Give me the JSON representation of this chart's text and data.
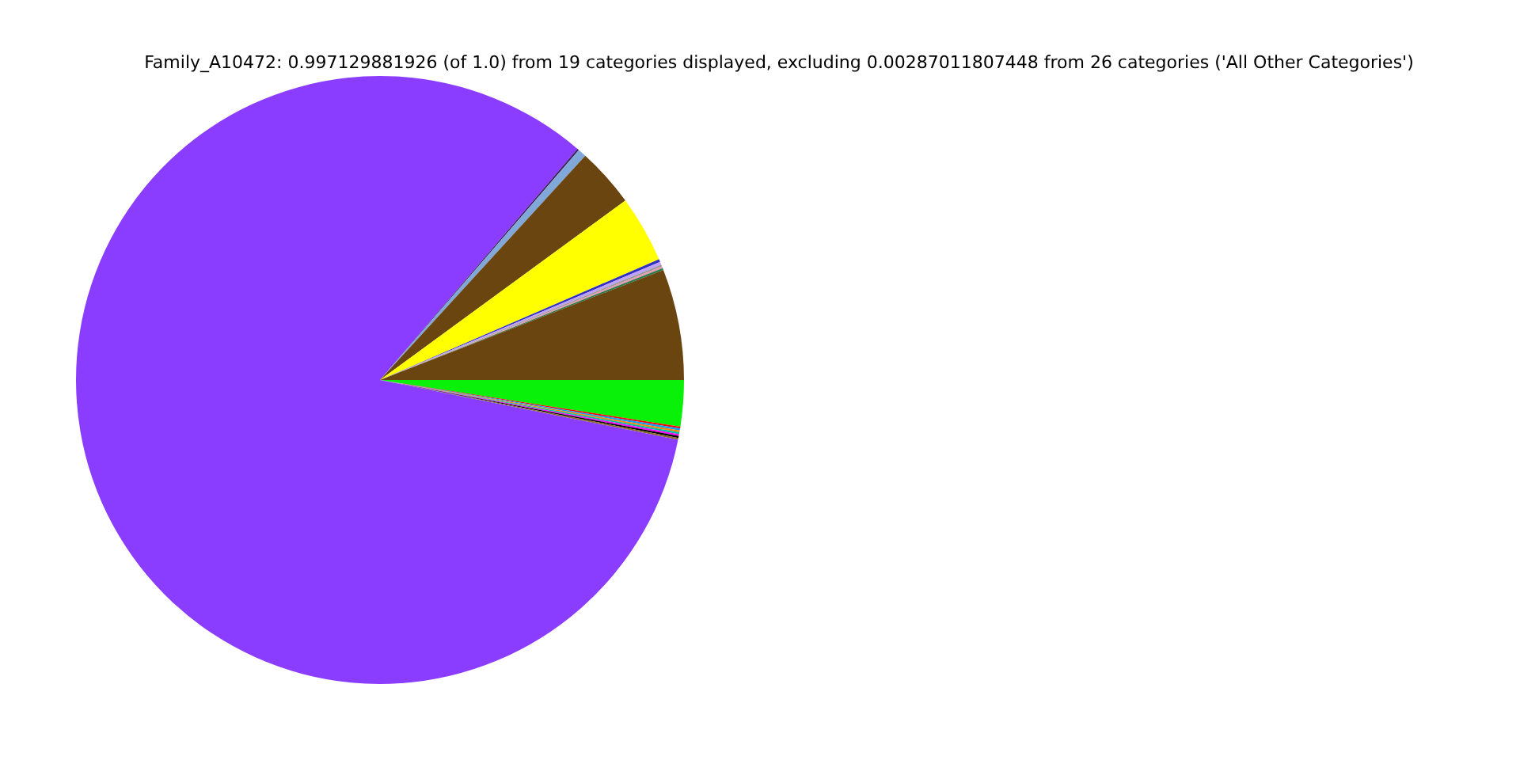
{
  "chart_data": {
    "type": "pie",
    "title": "Family_A10472: 0.997129881926 (of 1.0) from 19 categories displayed, excluding 0.00287011807448 from 26 categories ('All Other Categories')",
    "categories": [
      null,
      null,
      null,
      null,
      null,
      null,
      null,
      null,
      null,
      null,
      null,
      null,
      null,
      null,
      null,
      null,
      null,
      null,
      null
    ],
    "values": [
      2.45,
      0.1,
      0.1,
      0.1,
      0.1,
      0.1,
      0.1,
      0.1,
      83.1,
      0.1,
      0.45,
      3.15,
      3.55,
      0.15,
      0.15,
      0.1,
      0.1,
      0.1,
      5.9
    ],
    "colors": [
      "#09f009",
      "#ff0000",
      "#00a0ff",
      "#ff8000",
      "#00c0a0",
      "#ff00ff",
      "#000000",
      "#8a6a2a",
      "#8b3dff",
      "#402060",
      "#80a8d8",
      "#6b4510",
      "#ffff00",
      "#3030c0",
      "#c0a0ff",
      "#999999",
      "#e899b0",
      "#2a7a4a",
      "#6b4510"
    ],
    "legend": false
  }
}
